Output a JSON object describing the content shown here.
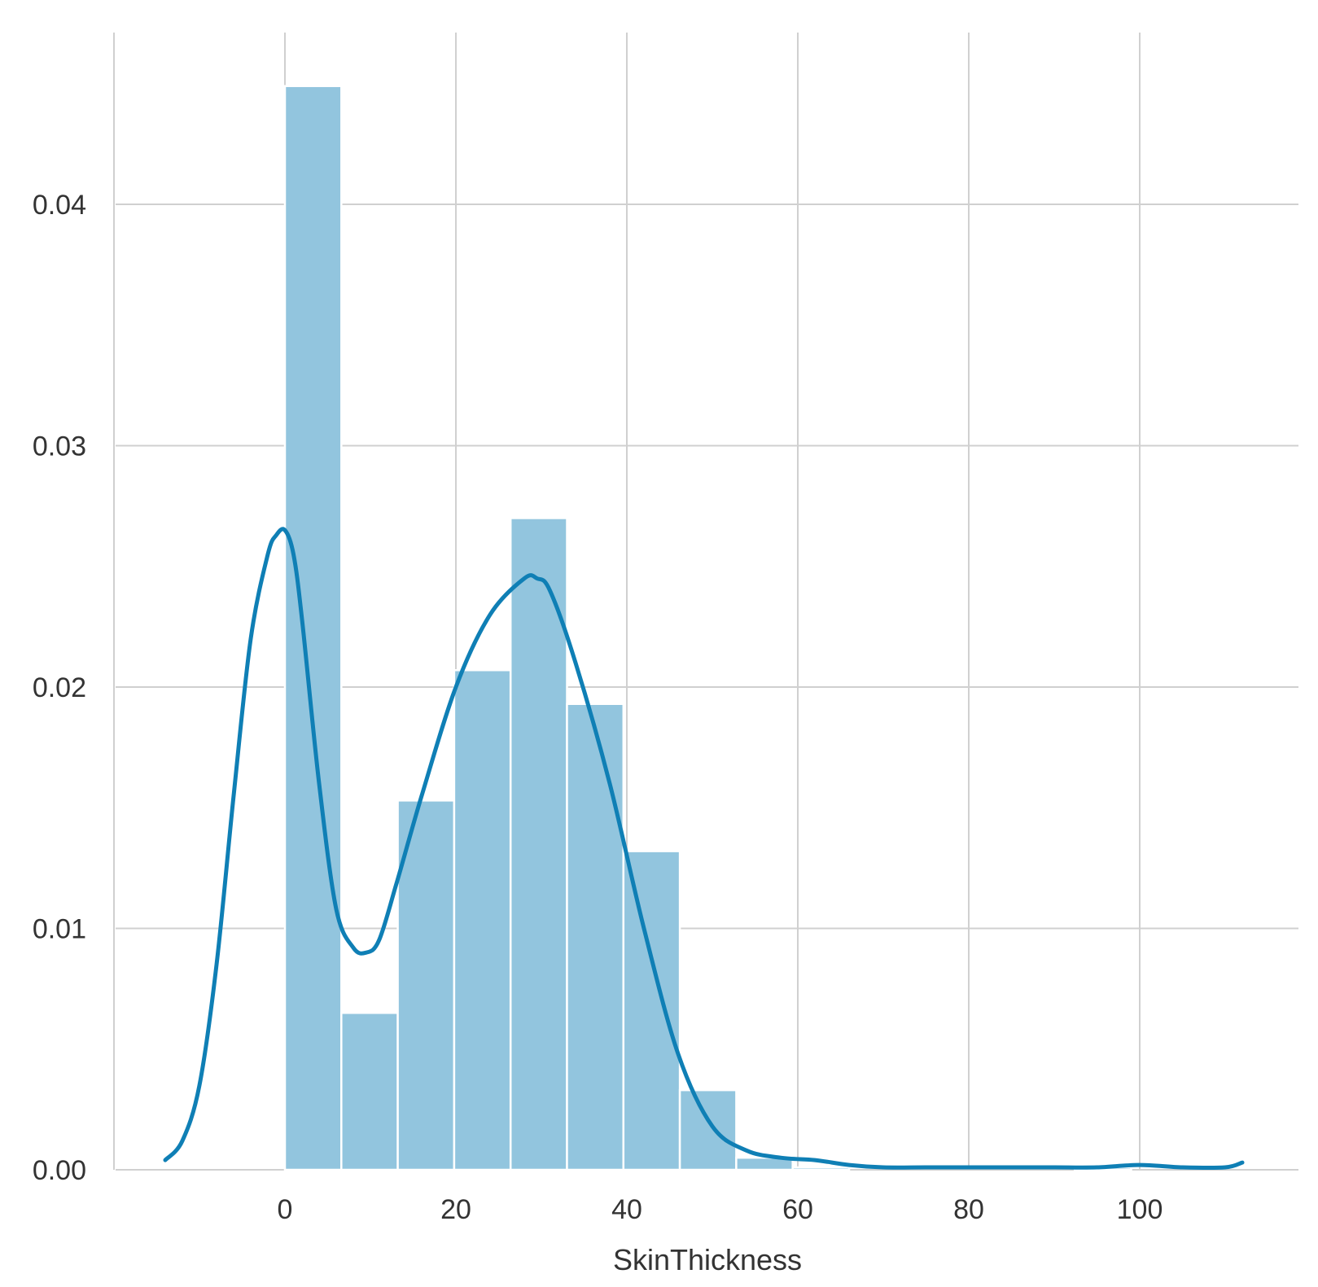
{
  "chart_data": {
    "type": "bar",
    "subtype": "histogram-with-kde",
    "title": "",
    "xlabel": "SkinThickness",
    "ylabel": "",
    "xlim": [
      -20,
      118
    ],
    "ylim": [
      0,
      0.0472
    ],
    "grid": true,
    "x_ticks": [
      0,
      20,
      40,
      60,
      80,
      100
    ],
    "y_ticks": [
      0.0,
      0.01,
      0.02,
      0.03,
      0.04
    ],
    "x_tick_labels": [
      "0",
      "20",
      "40",
      "60",
      "80",
      "100"
    ],
    "y_tick_labels": [
      "0.00",
      "0.01",
      "0.02",
      "0.03",
      "0.04"
    ],
    "colors": {
      "bar": "#92c5de",
      "kde": "#0f7fb5",
      "grid": "#d0d0d0",
      "text": "#333333"
    },
    "bins": [
      {
        "x0": 0.0,
        "x1": 6.6,
        "density": 0.0449
      },
      {
        "x0": 6.6,
        "x1": 13.2,
        "density": 0.0065
      },
      {
        "x0": 13.2,
        "x1": 19.8,
        "density": 0.0153
      },
      {
        "x0": 19.8,
        "x1": 26.4,
        "density": 0.0207
      },
      {
        "x0": 26.4,
        "x1": 33.0,
        "density": 0.027
      },
      {
        "x0": 33.0,
        "x1": 39.6,
        "density": 0.0193
      },
      {
        "x0": 39.6,
        "x1": 46.2,
        "density": 0.0132
      },
      {
        "x0": 46.2,
        "x1": 52.8,
        "density": 0.0033
      },
      {
        "x0": 52.8,
        "x1": 59.4,
        "density": 0.0005
      },
      {
        "x0": 59.4,
        "x1": 66.0,
        "density": 0.0001
      },
      {
        "x0": 92.4,
        "x1": 99.0,
        "density": 0.0001
      }
    ],
    "kde": {
      "x": [
        -14,
        -12,
        -10,
        -8,
        -6,
        -4,
        -2,
        -1,
        0,
        1,
        2,
        4,
        6,
        8,
        9.5,
        11,
        13,
        16,
        20,
        24,
        28,
        29.5,
        31,
        34,
        38,
        42,
        46,
        50,
        54,
        58,
        62,
        66,
        70,
        75,
        80,
        85,
        90,
        95,
        100,
        105,
        110,
        112
      ],
      "y": [
        0.0004,
        0.0012,
        0.0035,
        0.0085,
        0.0155,
        0.022,
        0.0255,
        0.0263,
        0.0265,
        0.0255,
        0.0228,
        0.016,
        0.0108,
        0.0092,
        0.009,
        0.0095,
        0.0118,
        0.0155,
        0.02,
        0.023,
        0.0245,
        0.0245,
        0.024,
        0.021,
        0.016,
        0.01,
        0.0048,
        0.0018,
        0.0008,
        0.0005,
        0.0004,
        0.0002,
        0.0001,
        0.0001,
        0.0001,
        0.0001,
        0.0001,
        0.0001,
        0.0002,
        0.0001,
        0.0001,
        0.0003
      ]
    }
  }
}
